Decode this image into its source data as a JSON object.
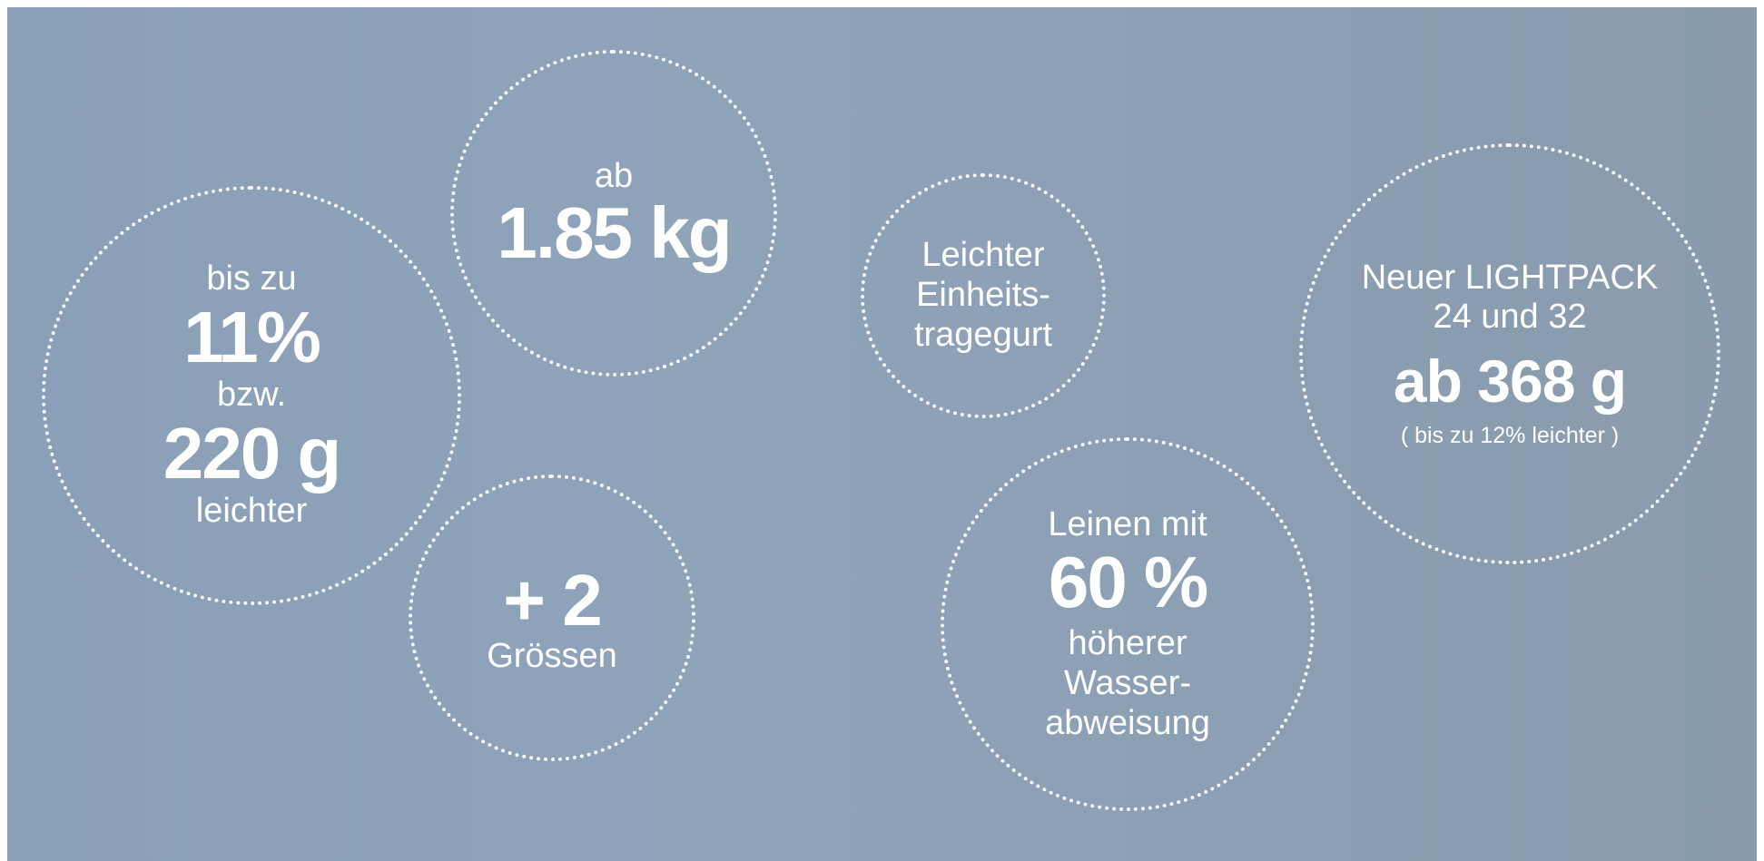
{
  "bubbles": {
    "weight_saving": {
      "line1": "bis zu",
      "percent": "11%",
      "line2": "bzw.",
      "grams": "220 g",
      "line3": "leichter"
    },
    "weight_from": {
      "line1": "ab",
      "value": "1.85 kg"
    },
    "sizes": {
      "value": "+ 2",
      "label": "Grössen"
    },
    "harness": {
      "line1": "Leichter",
      "line2": "Einheits-",
      "line3": "tragegurt"
    },
    "lines": {
      "line1": "Leinen mit",
      "value": "60 %",
      "line2": "höherer",
      "line3": "Wasser-",
      "line4": "abweisung"
    },
    "lightpack": {
      "line1": "Neuer LIGHTPACK",
      "line2": "24 und 32",
      "value": "ab 368 g",
      "note": "( bis zu 12% leichter )"
    }
  },
  "colors": {
    "background": "#8fa3b9",
    "text": "#ffffff"
  }
}
